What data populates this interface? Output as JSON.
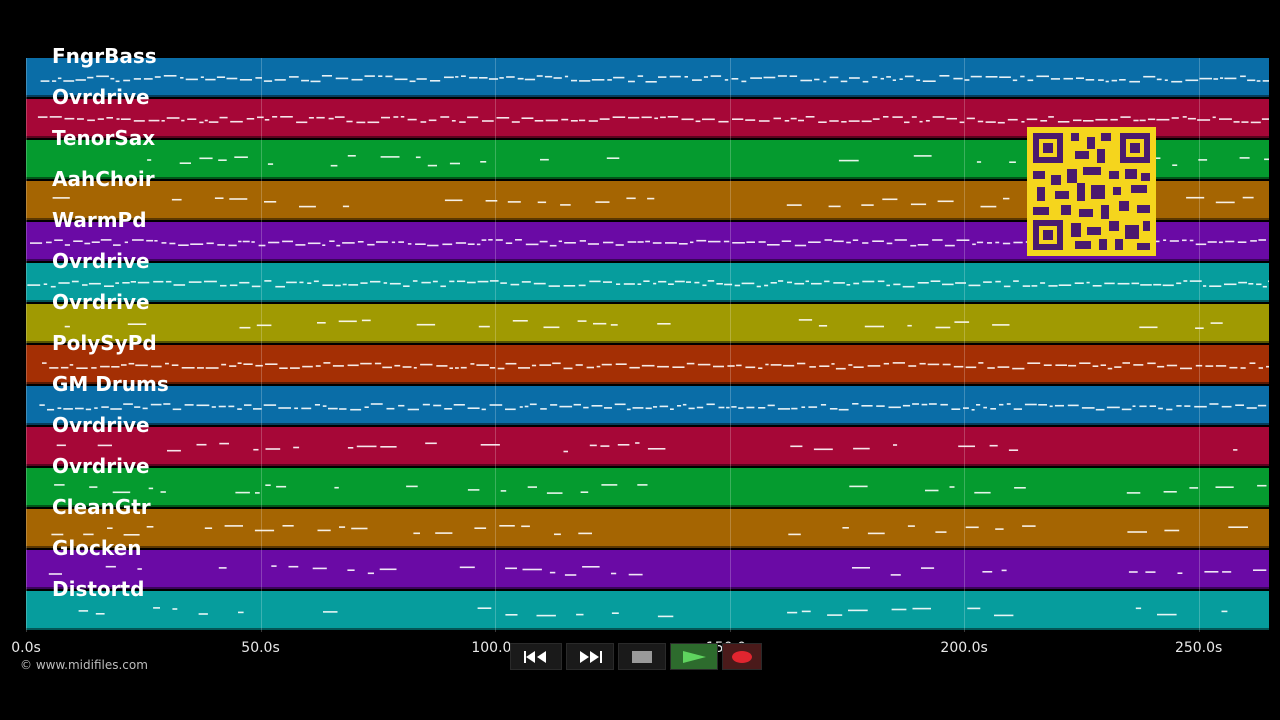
{
  "tracks": [
    {
      "name": "FngrBass",
      "color": "#0a6da7"
    },
    {
      "name": "Ovrdrive",
      "color": "#a60737"
    },
    {
      "name": "TenorSax",
      "color": "#059b2f"
    },
    {
      "name": "AahChoir",
      "color": "#a56502"
    },
    {
      "name": "WarmPd",
      "color": "#6a0aa5"
    },
    {
      "name": "Ovrdrive",
      "color": "#069d9d"
    },
    {
      "name": "Ovrdrive",
      "color": "#a09a02"
    },
    {
      "name": "PolySyPd",
      "color": "#a42f04"
    },
    {
      "name": "GM Drums",
      "color": "#0a6da7"
    },
    {
      "name": "Ovrdrive",
      "color": "#a60737"
    },
    {
      "name": "Ovrdrive",
      "color": "#059b2f"
    },
    {
      "name": "CleanGtr",
      "color": "#a56502"
    },
    {
      "name": "Glocken",
      "color": "#6a0aa5"
    },
    {
      "name": "Distortd",
      "color": "#069d9d"
    }
  ],
  "timeline": {
    "ticks": [
      "0.0s",
      "50.0s",
      "100.0s",
      "150.0s",
      "200.0s",
      "250.0s"
    ],
    "tick_seconds": [
      0,
      50,
      100,
      150,
      200,
      250
    ],
    "total_seconds": 265
  },
  "copyright": "© www.midifiles.com",
  "transport": {
    "rewind": "rewind-icon",
    "fast_forward": "fast-forward-icon",
    "stop": "stop-icon",
    "play": "play-icon",
    "record": "record-icon"
  },
  "qr_code": "qr-code"
}
